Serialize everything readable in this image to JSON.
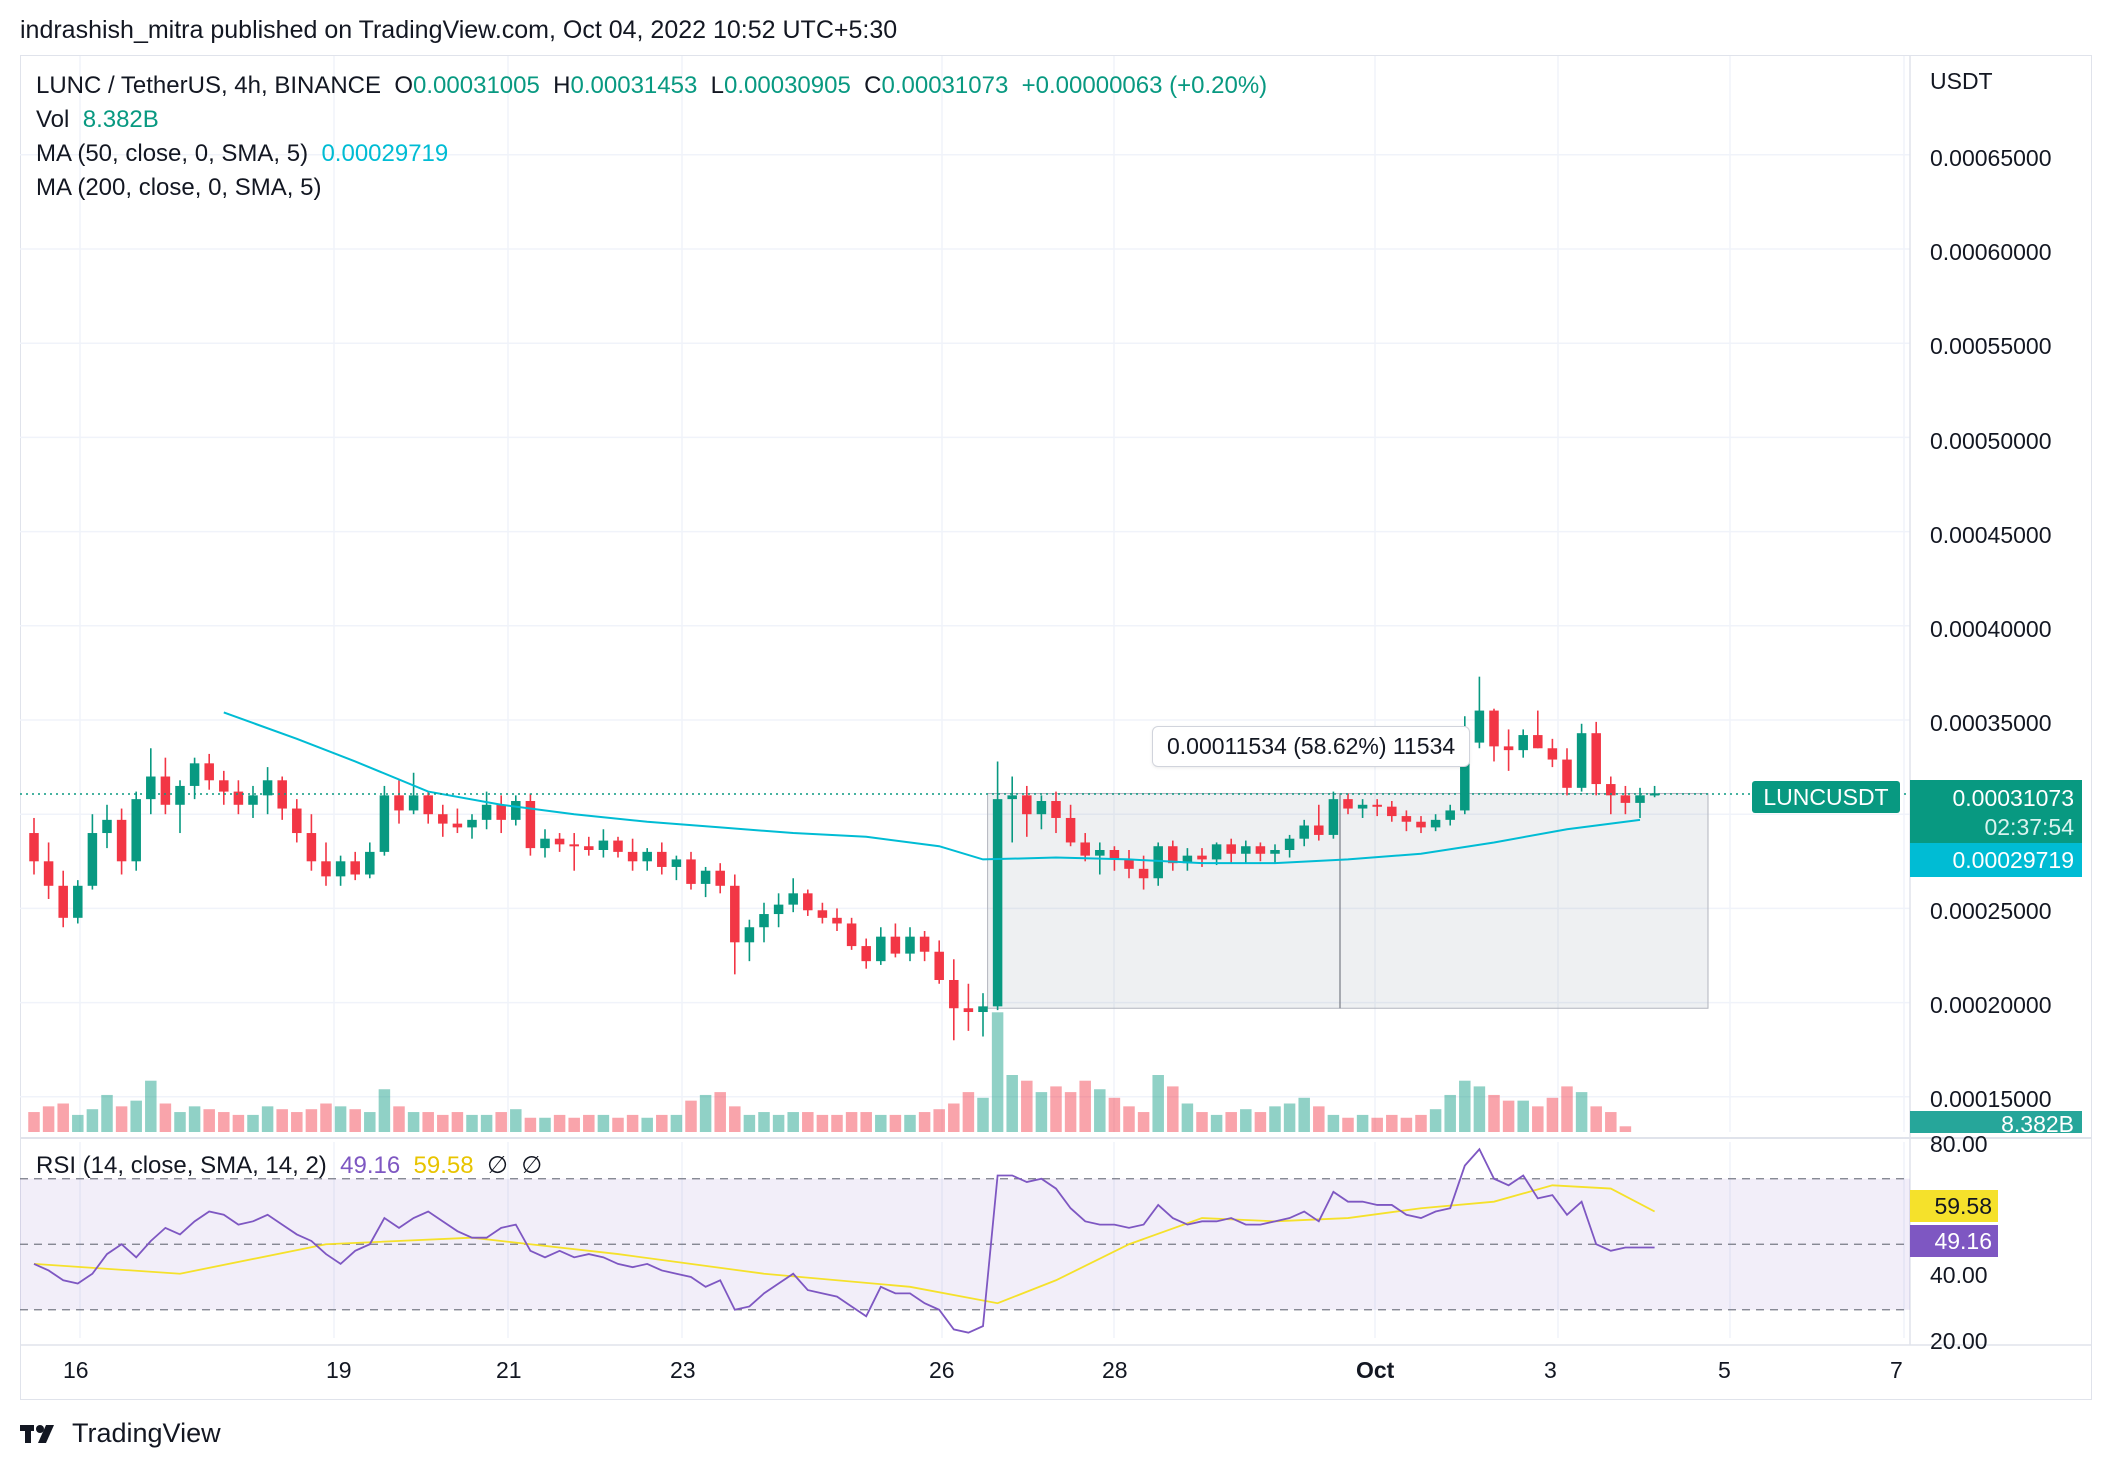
{
  "header": {
    "published_line": "indrashish_mitra published on TradingView.com, Oct 04, 2022 10:52 UTC+5:30"
  },
  "legend": {
    "symbol": "LUNC / TetherUS, 4h, BINANCE",
    "o_label": "O",
    "o_value": "0.00031005",
    "h_label": "H",
    "h_value": "0.00031453",
    "l_label": "L",
    "l_value": "0.00030905",
    "c_label": "C",
    "c_value": "0.00031073",
    "change": "+0.00000063 (+0.20%)",
    "vol_label": "Vol",
    "vol_value": "8.382B",
    "ma50_label": "MA (50, close, 0, SMA, 5)",
    "ma50_value": "0.00029719",
    "ma200_label": "MA (200, close, 0, SMA, 5)"
  },
  "rsi_legend": {
    "label": "RSI (14, close, SMA, 14, 2)",
    "rsi_value": "49.16",
    "sma_value": "59.58",
    "na1": "∅",
    "na2": "∅"
  },
  "price_axis": {
    "currency": "USDT",
    "ticks": [
      "0.00065000",
      "0.00060000",
      "0.00055000",
      "0.00050000",
      "0.00045000",
      "0.00040000",
      "0.00035000",
      "0.00025000",
      "0.00020000",
      "0.00015000"
    ]
  },
  "rsi_axis": {
    "ticks": [
      "80.00",
      "40.00",
      "20.00"
    ]
  },
  "tags": {
    "symbol_tag": "LUNCUSDT",
    "last_price": "0.00031073",
    "countdown": "02:37:54",
    "ma_tag": "0.00029719",
    "vol_tag": "8.382B",
    "rsi_sma_tag": "59.58",
    "rsi_tag": "49.16"
  },
  "measure": {
    "label": "0.00011534 (58.62%) 11534"
  },
  "time_axis": [
    "16",
    "19",
    "21",
    "23",
    "26",
    "28",
    "Oct",
    "3",
    "5",
    "7"
  ],
  "footer": {
    "brand": "TradingView"
  },
  "colors": {
    "up": "#089981",
    "down": "#f23645",
    "ma50": "#00bcd4",
    "rsi": "#7e57c2",
    "rsi_sma": "#f5e12b"
  },
  "chart_data": {
    "type": "candlestick",
    "timeframe": "4h",
    "price_range": [
      0.000135,
      0.000685
    ],
    "ohlc": [
      [
        0.00029,
        0.000298,
        0.000268,
        0.000275
      ],
      [
        0.000275,
        0.000285,
        0.000255,
        0.000262
      ],
      [
        0.000262,
        0.00027,
        0.00024,
        0.000245
      ],
      [
        0.000245,
        0.000265,
        0.000242,
        0.000262
      ],
      [
        0.000262,
        0.0003,
        0.00026,
        0.00029
      ],
      [
        0.00029,
        0.000305,
        0.000282,
        0.000297
      ],
      [
        0.000297,
        0.000303,
        0.000268,
        0.000275
      ],
      [
        0.000275,
        0.000312,
        0.00027,
        0.000308
      ],
      [
        0.000308,
        0.000335,
        0.0003,
        0.00032
      ],
      [
        0.00032,
        0.00033,
        0.0003,
        0.000305
      ],
      [
        0.000305,
        0.000318,
        0.00029,
        0.000315
      ],
      [
        0.000315,
        0.00033,
        0.000308,
        0.000327
      ],
      [
        0.000327,
        0.000332,
        0.000313,
        0.000318
      ],
      [
        0.000318,
        0.000323,
        0.000305,
        0.000312
      ],
      [
        0.000312,
        0.000318,
        0.0003,
        0.000305
      ],
      [
        0.000305,
        0.000315,
        0.000298,
        0.00031
      ],
      [
        0.00031,
        0.000325,
        0.0003,
        0.000318
      ],
      [
        0.000318,
        0.00032,
        0.000297,
        0.000303
      ],
      [
        0.000303,
        0.000308,
        0.000285,
        0.00029
      ],
      [
        0.00029,
        0.0003,
        0.00027,
        0.000275
      ],
      [
        0.000275,
        0.000285,
        0.000262,
        0.000267
      ],
      [
        0.000267,
        0.000278,
        0.000262,
        0.000275
      ],
      [
        0.000275,
        0.00028,
        0.000265,
        0.000268
      ],
      [
        0.000268,
        0.000285,
        0.000266,
        0.00028
      ],
      [
        0.00028,
        0.000315,
        0.000278,
        0.00031
      ],
      [
        0.00031,
        0.000318,
        0.000295,
        0.000302
      ],
      [
        0.000302,
        0.000322,
        0.0003,
        0.00031
      ],
      [
        0.00031,
        0.000312,
        0.000295,
        0.0003
      ],
      [
        0.0003,
        0.000305,
        0.000288,
        0.000295
      ],
      [
        0.000295,
        0.000303,
        0.00029,
        0.000293
      ],
      [
        0.000293,
        0.0003,
        0.000287,
        0.000297
      ],
      [
        0.000297,
        0.000312,
        0.000292,
        0.000305
      ],
      [
        0.000305,
        0.00031,
        0.00029,
        0.000297
      ],
      [
        0.000297,
        0.00031,
        0.000294,
        0.000307
      ],
      [
        0.000307,
        0.000311,
        0.000278,
        0.000282
      ],
      [
        0.000282,
        0.000292,
        0.000277,
        0.000287
      ],
      [
        0.000287,
        0.00029,
        0.00028,
        0.000284
      ],
      [
        0.000284,
        0.00029,
        0.00027,
        0.000283
      ],
      [
        0.000283,
        0.000288,
        0.000278,
        0.000281
      ],
      [
        0.000281,
        0.000292,
        0.000277,
        0.000286
      ],
      [
        0.000286,
        0.000288,
        0.000277,
        0.00028
      ],
      [
        0.00028,
        0.000287,
        0.00027,
        0.000275
      ],
      [
        0.000275,
        0.000282,
        0.00027,
        0.00028
      ],
      [
        0.00028,
        0.000285,
        0.000268,
        0.000272
      ],
      [
        0.000272,
        0.000278,
        0.000265,
        0.000276
      ],
      [
        0.000276,
        0.00028,
        0.00026,
        0.000263
      ],
      [
        0.000263,
        0.000272,
        0.000256,
        0.00027
      ],
      [
        0.00027,
        0.000274,
        0.000258,
        0.000262
      ],
      [
        0.000262,
        0.000268,
        0.000215,
        0.000232
      ],
      [
        0.000232,
        0.000244,
        0.000222,
        0.00024
      ],
      [
        0.00024,
        0.000253,
        0.000232,
        0.000247
      ],
      [
        0.000247,
        0.000258,
        0.00024,
        0.000252
      ],
      [
        0.000252,
        0.000266,
        0.000248,
        0.000258
      ],
      [
        0.000258,
        0.00026,
        0.000246,
        0.000249
      ],
      [
        0.000249,
        0.000253,
        0.000242,
        0.000245
      ],
      [
        0.000245,
        0.00025,
        0.000238,
        0.000242
      ],
      [
        0.000242,
        0.000245,
        0.000228,
        0.00023
      ],
      [
        0.00023,
        0.000234,
        0.000218,
        0.000222
      ],
      [
        0.000222,
        0.00024,
        0.00022,
        0.000235
      ],
      [
        0.000235,
        0.000242,
        0.000224,
        0.000226
      ],
      [
        0.000226,
        0.00024,
        0.000222,
        0.000235
      ],
      [
        0.000235,
        0.000238,
        0.000222,
        0.000227
      ],
      [
        0.000227,
        0.000233,
        0.00021,
        0.000212
      ],
      [
        0.000212,
        0.000223,
        0.00018,
        0.000197
      ],
      [
        0.000197,
        0.00021,
        0.000185,
        0.000195
      ],
      [
        0.000195,
        0.000205,
        0.000182,
        0.000198
      ],
      [
        0.000198,
        0.000328,
        0.000196,
        0.000308
      ],
      [
        0.000308,
        0.00032,
        0.000285,
        0.00031
      ],
      [
        0.00031,
        0.000315,
        0.000288,
        0.0003
      ],
      [
        0.0003,
        0.00031,
        0.000292,
        0.000307
      ],
      [
        0.000307,
        0.000312,
        0.00029,
        0.000298
      ],
      [
        0.000298,
        0.000305,
        0.000283,
        0.000285
      ],
      [
        0.000285,
        0.00029,
        0.000275,
        0.000278
      ],
      [
        0.000278,
        0.000285,
        0.000268,
        0.000281
      ],
      [
        0.000281,
        0.000283,
        0.00027,
        0.000276
      ],
      [
        0.000276,
        0.000281,
        0.000266,
        0.000271
      ],
      [
        0.000271,
        0.000278,
        0.00026,
        0.000266
      ],
      [
        0.000266,
        0.000285,
        0.000262,
        0.000283
      ],
      [
        0.000283,
        0.000286,
        0.00027,
        0.000274
      ],
      [
        0.000274,
        0.000282,
        0.00027,
        0.000278
      ],
      [
        0.000278,
        0.000282,
        0.000272,
        0.000276
      ],
      [
        0.000276,
        0.000285,
        0.000273,
        0.000284
      ],
      [
        0.000284,
        0.000287,
        0.000274,
        0.000279
      ],
      [
        0.000279,
        0.000286,
        0.000274,
        0.000283
      ],
      [
        0.000283,
        0.000285,
        0.000275,
        0.000279
      ],
      [
        0.000279,
        0.000284,
        0.000274,
        0.000281
      ],
      [
        0.000281,
        0.000289,
        0.000277,
        0.000287
      ],
      [
        0.000287,
        0.000297,
        0.000283,
        0.000294
      ],
      [
        0.000294,
        0.000305,
        0.000286,
        0.000289
      ],
      [
        0.000289,
        0.000312,
        0.000287,
        0.000308
      ],
      [
        0.000308,
        0.000311,
        0.0003,
        0.000303
      ],
      [
        0.000303,
        0.000308,
        0.000298,
        0.000305
      ],
      [
        0.000305,
        0.000308,
        0.000299,
        0.000304
      ],
      [
        0.000304,
        0.000307,
        0.000296,
        0.000299
      ],
      [
        0.000299,
        0.000302,
        0.000291,
        0.000296
      ],
      [
        0.000296,
        0.000299,
        0.00029,
        0.000293
      ],
      [
        0.000293,
        0.0003,
        0.000291,
        0.000297
      ],
      [
        0.000297,
        0.000305,
        0.000294,
        0.000302
      ],
      [
        0.000302,
        0.000352,
        0.0003,
        0.000338
      ],
      [
        0.000338,
        0.000373,
        0.000335,
        0.000355
      ],
      [
        0.000355,
        0.000356,
        0.000328,
        0.000336
      ],
      [
        0.000336,
        0.000345,
        0.000323,
        0.000334
      ],
      [
        0.000334,
        0.000345,
        0.00033,
        0.000342
      ],
      [
        0.000342,
        0.000355,
        0.000335,
        0.000335
      ],
      [
        0.000335,
        0.00034,
        0.000325,
        0.000329
      ],
      [
        0.000329,
        0.000335,
        0.00031,
        0.000314
      ],
      [
        0.000314,
        0.000348,
        0.000312,
        0.000343
      ],
      [
        0.000343,
        0.000349,
        0.00031,
        0.000316
      ],
      [
        0.000316,
        0.00032,
        0.0003,
        0.00031
      ],
      [
        0.00031,
        0.000315,
        0.0003,
        0.000306
      ],
      [
        0.000306,
        0.000314,
        0.000298,
        0.00031
      ],
      [
        0.00031,
        0.000315,
        0.000309,
        0.000311
      ]
    ],
    "volume_relative": [
      0.35,
      0.45,
      0.5,
      0.3,
      0.4,
      0.65,
      0.45,
      0.55,
      0.9,
      0.5,
      0.35,
      0.45,
      0.4,
      0.35,
      0.3,
      0.3,
      0.45,
      0.4,
      0.35,
      0.4,
      0.5,
      0.45,
      0.4,
      0.35,
      0.75,
      0.45,
      0.35,
      0.35,
      0.3,
      0.35,
      0.3,
      0.3,
      0.35,
      0.4,
      0.25,
      0.25,
      0.3,
      0.25,
      0.3,
      0.3,
      0.25,
      0.3,
      0.25,
      0.3,
      0.3,
      0.55,
      0.65,
      0.7,
      0.45,
      0.3,
      0.35,
      0.3,
      0.35,
      0.35,
      0.3,
      0.3,
      0.35,
      0.35,
      0.3,
      0.3,
      0.3,
      0.35,
      0.4,
      0.5,
      0.7,
      0.6,
      2.1,
      1.0,
      0.9,
      0.7,
      0.8,
      0.7,
      0.9,
      0.75,
      0.6,
      0.45,
      0.35,
      1.0,
      0.8,
      0.5,
      0.35,
      0.3,
      0.35,
      0.4,
      0.35,
      0.45,
      0.5,
      0.6,
      0.45,
      0.3,
      0.25,
      0.3,
      0.25,
      0.3,
      0.25,
      0.3,
      0.4,
      0.65,
      0.9,
      0.8,
      0.65,
      0.55,
      0.55,
      0.45,
      0.6,
      0.8,
      0.7,
      0.45,
      0.35,
      0.1
    ],
    "ma50": [
      [
        13,
        0.000354
      ],
      [
        18,
        0.00034
      ],
      [
        22,
        0.000328
      ],
      [
        27,
        0.000312
      ],
      [
        32,
        0.000305
      ],
      [
        37,
        0.0003
      ],
      [
        42,
        0.000296
      ],
      [
        47,
        0.000293
      ],
      [
        52,
        0.00029
      ],
      [
        57,
        0.000288
      ],
      [
        62,
        0.000283
      ],
      [
        65,
        0.000276
      ],
      [
        70,
        0.000277
      ],
      [
        75,
        0.000276
      ],
      [
        80,
        0.000274
      ],
      [
        85,
        0.000274
      ],
      [
        90,
        0.000276
      ],
      [
        95,
        0.000279
      ],
      [
        100,
        0.000285
      ],
      [
        105,
        0.000292
      ],
      [
        110,
        0.000297
      ]
    ],
    "rsi": [
      44,
      42,
      39,
      38,
      41,
      47,
      50,
      46,
      51,
      55,
      53,
      57,
      60,
      59,
      56,
      57,
      59,
      56,
      53,
      51,
      47,
      44,
      48,
      50,
      58,
      55,
      58,
      60,
      57,
      54,
      52,
      52,
      55,
      56,
      48,
      46,
      48,
      46,
      47,
      46,
      44,
      43,
      44,
      42,
      41,
      40,
      37,
      39,
      30,
      31,
      35,
      38,
      41,
      36,
      35,
      34,
      31,
      28,
      37,
      35,
      35,
      32,
      30,
      24,
      23,
      25,
      71,
      71,
      69,
      70,
      67,
      61,
      57,
      56,
      56,
      55,
      56,
      62,
      58,
      56,
      57,
      57,
      58,
      56,
      56,
      57,
      58,
      60,
      57,
      66,
      63,
      63,
      62,
      62,
      59,
      58,
      60,
      61,
      74,
      79,
      70,
      68,
      71,
      64,
      65,
      59,
      63,
      50,
      48,
      49,
      49,
      49
    ],
    "rsi_sma": [
      [
        0,
        44
      ],
      [
        10,
        41
      ],
      [
        20,
        50
      ],
      [
        30,
        52
      ],
      [
        40,
        47
      ],
      [
        50,
        41
      ],
      [
        60,
        37
      ],
      [
        66,
        32
      ],
      [
        70,
        39
      ],
      [
        75,
        50
      ],
      [
        80,
        58
      ],
      [
        85,
        57
      ],
      [
        90,
        58
      ],
      [
        95,
        61
      ],
      [
        100,
        63
      ],
      [
        104,
        68
      ],
      [
        108,
        67
      ],
      [
        111,
        60
      ]
    ],
    "rsi_levels": [
      70,
      50,
      30
    ],
    "rsi_range": [
      18,
      82
    ],
    "measure": {
      "from_price": 0.000197,
      "to_price": 0.000311,
      "start_index": 66,
      "end_index": 114,
      "label": "0.00011534 (58.62%) 11534"
    }
  }
}
